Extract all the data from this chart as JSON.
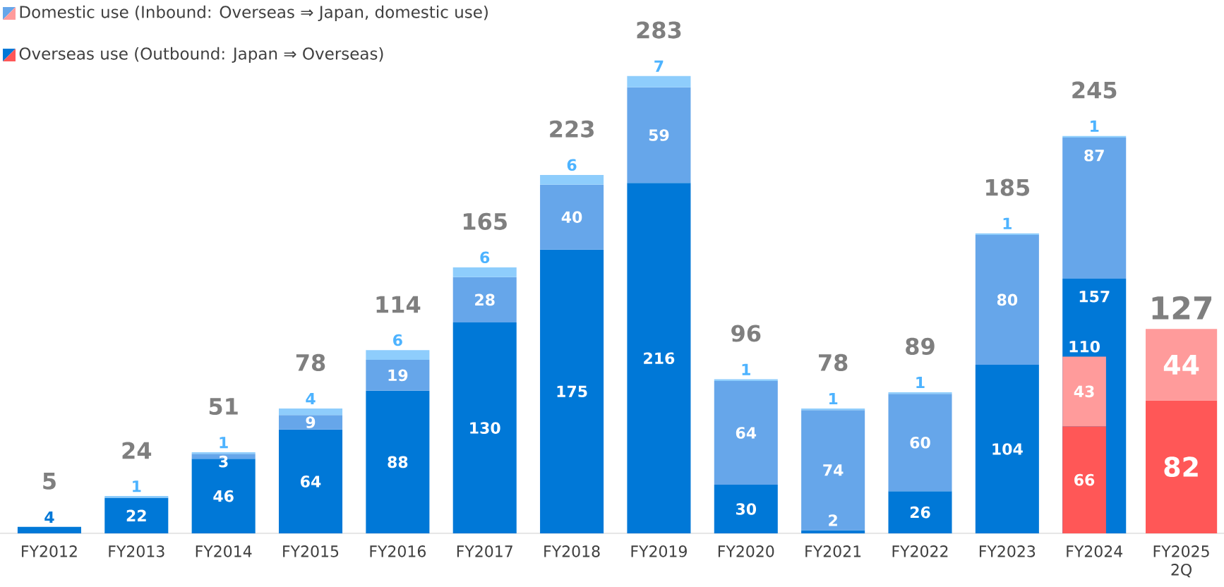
{
  "chart_data": [
    {
      "type": "bar",
      "stacked": true,
      "categories": [
        "FY2012",
        "FY2013",
        "FY2014",
        "FY2015",
        "FY2016",
        "FY2017",
        "FY2018",
        "FY2019",
        "FY2020",
        "FY2021",
        "FY2022",
        "FY2023",
        "FY2024",
        "FY2025 2Q"
      ],
      "series": [
        {
          "name": "Overseas use (Outbound: Japan ⇒ Overseas)",
          "color": "#0078d7",
          "values": [
            4,
            22,
            46,
            64,
            88,
            130,
            175,
            216,
            30,
            2,
            26,
            104,
            157,
            null
          ]
        },
        {
          "name": "Domestic use (Inbound: Overseas ⇒ Japan, domestic use)",
          "color": "#66a6ea",
          "values": [
            null,
            null,
            3,
            9,
            19,
            28,
            40,
            59,
            64,
            74,
            60,
            80,
            87,
            null
          ]
        },
        {
          "color": "#8ecdfc",
          "values": [
            null,
            1,
            1,
            4,
            6,
            6,
            6,
            7,
            1,
            1,
            1,
            1,
            1,
            null
          ]
        }
      ],
      "totals": [
        "5",
        "24",
        "51",
        "78",
        "114",
        "165",
        "223",
        "283",
        "96",
        "78",
        "89",
        "185",
        "245",
        null
      ],
      "data_labels": true,
      "legend": "top left"
    },
    {
      "type": "bar",
      "stacked": true,
      "tick_labels": false,
      "categories": [
        null,
        null,
        null,
        null,
        null,
        null,
        null,
        null,
        null,
        null,
        null,
        null,
        null,
        null
      ],
      "series": [
        {
          "color": "#ff5757",
          "values": [
            null,
            null,
            null,
            null,
            null,
            null,
            null,
            null,
            null,
            null,
            null,
            null,
            66,
            82
          ]
        },
        {
          "color": "#ff9b9b",
          "values": [
            null,
            null,
            null,
            null,
            null,
            null,
            null,
            null,
            null,
            null,
            null,
            null,
            43,
            44
          ]
        }
      ],
      "totals": [
        null,
        null,
        null,
        null,
        null,
        null,
        null,
        null,
        null,
        null,
        null,
        null,
        "110",
        "127"
      ],
      "data_labels": true
    }
  ]
}
